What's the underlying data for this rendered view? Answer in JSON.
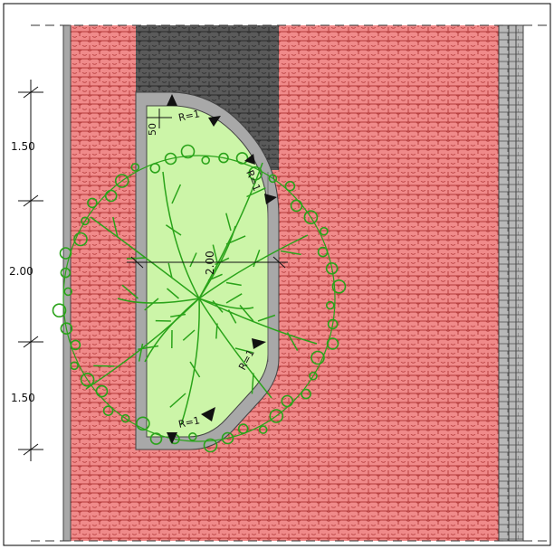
{
  "labels": {
    "dim_top": "1.50",
    "dim_mid": "2.00",
    "dim_bottom": "1.50",
    "offset": "50",
    "width_inner": "2.00",
    "radius_top_left": "R=1",
    "radius_top_right": "R=1",
    "radius_bottom_right": "R=1",
    "radius_bottom_left": "R=1"
  },
  "colors": {
    "paving": "#f08a8a",
    "paving_lines": "#b33a3a",
    "dark_paving": "#5a5a5a",
    "planter": "#ccf5a8",
    "curb": "#a8a8a8",
    "tree": "#2aa31a"
  }
}
